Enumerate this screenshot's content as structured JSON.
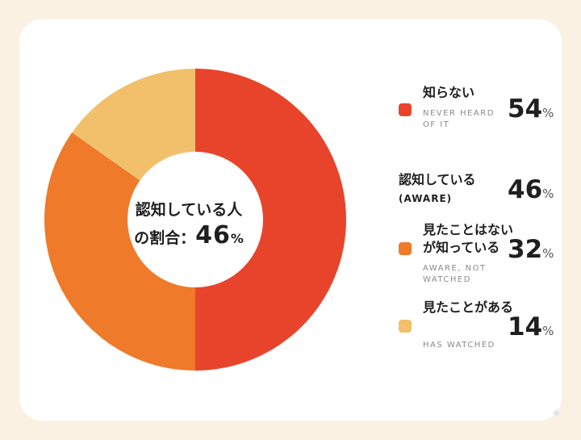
{
  "chart_data": {
    "type": "pie",
    "variant": "donut",
    "slices": [
      {
        "label": "認知している (AWARE)",
        "value": 46,
        "color": "#e8442c",
        "ring": true
      },
      {
        "label": "見たことはないが知っている",
        "sublabel": "AWARE, NOT WATCHED",
        "value": 32,
        "color": "#ee7a2a",
        "ring": true
      },
      {
        "label": "見たことがある",
        "sublabel": "HAS WATCHED",
        "value": 14,
        "color": "#f2c06a",
        "ring": true
      }
    ],
    "center_label": {
      "line1": "認知している人",
      "line2": "の割合：",
      "value": "46",
      "unit": "%"
    }
  },
  "legend": {
    "never": {
      "label": "知らない",
      "sublabel": "NEVER HEARD OF IT",
      "value": "54",
      "unit": "%",
      "color": "#e8442c"
    },
    "aware": {
      "label": "認知している",
      "sublabel": "(AWARE)",
      "value": "46",
      "unit": "%"
    },
    "not_watched": {
      "label": "見たことはないが知っている",
      "sublabel": "AWARE, NOT WATCHED",
      "value": "32",
      "unit": "%",
      "color": "#ee7a2a"
    },
    "watched": {
      "label": "見たことがある",
      "sublabel": "HAS WATCHED",
      "value": "14",
      "unit": "%",
      "color": "#f2c06a"
    }
  }
}
